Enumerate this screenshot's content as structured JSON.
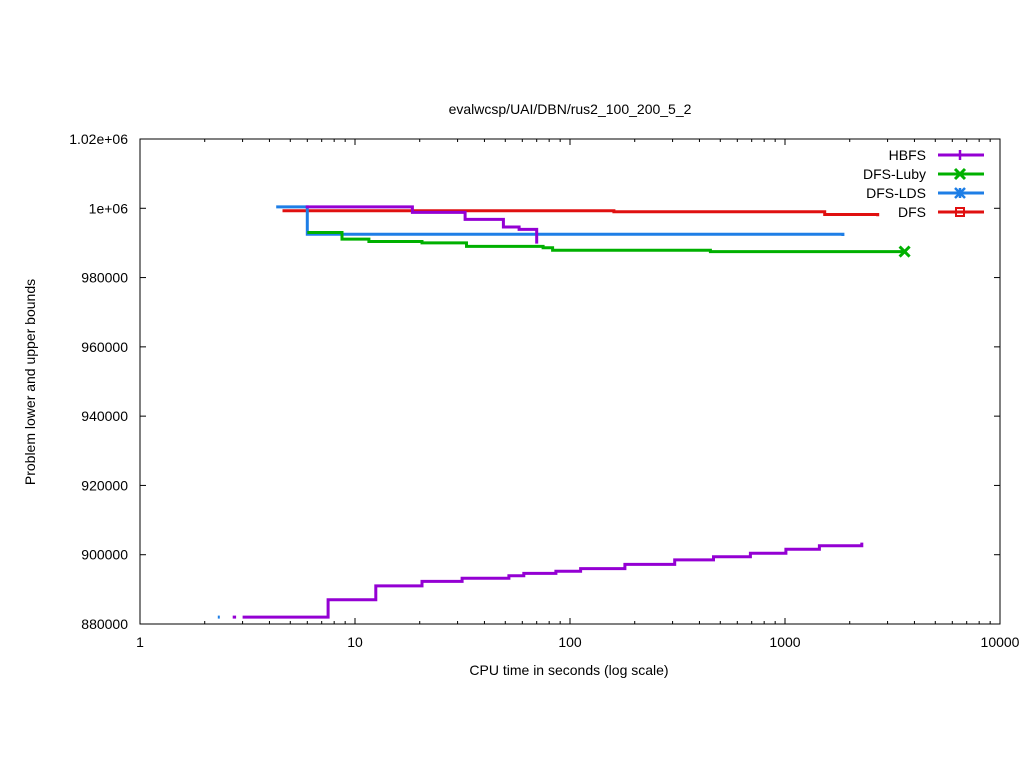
{
  "chart_data": {
    "type": "line",
    "title": "evalwcsp/UAI/DBN/rus2_100_200_5_2",
    "xlabel": "CPU time in seconds (log scale)",
    "ylabel": "Problem lower and upper bounds",
    "x_scale": "log",
    "xlim": [
      1,
      10000
    ],
    "ylim": [
      880000,
      1020000
    ],
    "x_ticks": [
      {
        "value": 1,
        "label": "1"
      },
      {
        "value": 10,
        "label": "10"
      },
      {
        "value": 100,
        "label": "100"
      },
      {
        "value": 1000,
        "label": "1000"
      },
      {
        "value": 10000,
        "label": "10000"
      }
    ],
    "y_ticks": [
      {
        "value": 880000,
        "label": "880000"
      },
      {
        "value": 900000,
        "label": "900000"
      },
      {
        "value": 920000,
        "label": "920000"
      },
      {
        "value": 940000,
        "label": "940000"
      },
      {
        "value": 960000,
        "label": "960000"
      },
      {
        "value": 980000,
        "label": "980000"
      },
      {
        "value": 1000000,
        "label": "1e+06"
      },
      {
        "value": 1020000,
        "label": "1.02e+06"
      }
    ],
    "grid": false,
    "legend_position": "top-right",
    "series": [
      {
        "name": "HBFS",
        "color": "#9400d3",
        "marker": "plus",
        "segments": [
          [
            [
              2.7,
              882000
            ],
            [
              2.8,
              882000
            ]
          ],
          [
            [
              3.0,
              882000
            ],
            [
              7.5,
              882000
            ],
            [
              7.5,
              887000
            ],
            [
              12.5,
              887000
            ],
            [
              12.5,
              891000
            ],
            [
              20.5,
              891000
            ],
            [
              20.5,
              892300
            ],
            [
              31.5,
              892300
            ],
            [
              31.5,
              893200
            ],
            [
              52,
              893200
            ],
            [
              52,
              893900
            ],
            [
              61,
              893900
            ],
            [
              61,
              894600
            ],
            [
              86,
              894600
            ],
            [
              86,
              895200
            ],
            [
              112,
              895200
            ],
            [
              112,
              896000
            ],
            [
              180,
              896000
            ],
            [
              180,
              897200
            ],
            [
              307,
              897200
            ],
            [
              307,
              898500
            ],
            [
              465,
              898500
            ],
            [
              465,
              899400
            ],
            [
              690,
              899400
            ],
            [
              690,
              900400
            ],
            [
              1010,
              900400
            ],
            [
              1010,
              901600
            ],
            [
              1445,
              901600
            ],
            [
              1445,
              902600
            ],
            [
              2275,
              902600
            ],
            [
              2275,
              903500
            ]
          ]
        ],
        "upper_segments": [
          [
            [
              5.9,
              1000400
            ],
            [
              18.5,
              1000400
            ],
            [
              18.5,
              998800
            ],
            [
              32.5,
              998800
            ],
            [
              32.5,
              996800
            ],
            [
              49,
              996800
            ],
            [
              49,
              994600
            ],
            [
              58,
              994600
            ],
            [
              58,
              993900
            ],
            [
              70,
              993900
            ],
            [
              70,
              989800
            ]
          ]
        ]
      },
      {
        "name": "DFS-Luby",
        "color": "#00b000",
        "marker": "x",
        "segments": [
          [
            [
              6,
              993000
            ],
            [
              8.7,
              993000
            ],
            [
              8.7,
              991100
            ],
            [
              11.6,
              991100
            ],
            [
              11.6,
              990400
            ],
            [
              20.5,
              990400
            ],
            [
              20.5,
              990000
            ],
            [
              33,
              990000
            ],
            [
              33,
              989000
            ],
            [
              75,
              989000
            ],
            [
              75,
              988600
            ],
            [
              83,
              988600
            ],
            [
              83,
              987900
            ],
            [
              450,
              987900
            ],
            [
              450,
              987500
            ],
            [
              3600,
              987500
            ]
          ]
        ],
        "end_marker": [
          3600,
          987500
        ]
      },
      {
        "name": "DFS-LDS",
        "color": "#1e7ee6",
        "marker": "star",
        "segments": [
          [
            [
              2.3,
              882000
            ],
            [
              2.35,
              882000
            ]
          ],
          [
            [
              4.3,
              1000400
            ],
            [
              6,
              1000400
            ],
            [
              6,
              992500
            ],
            [
              1860,
              992500
            ],
            [
              1860,
              992000
            ]
          ]
        ]
      },
      {
        "name": "DFS",
        "color": "#e01010",
        "marker": "square",
        "segments": [
          [
            [
              4.6,
              999300
            ],
            [
              160,
              999300
            ],
            [
              160,
              999000
            ],
            [
              1530,
              999000
            ],
            [
              1530,
              998200
            ],
            [
              2700,
              998200
            ],
            [
              2700,
              997700
            ]
          ]
        ]
      }
    ]
  }
}
